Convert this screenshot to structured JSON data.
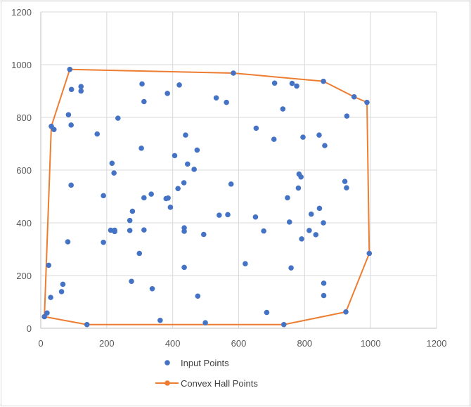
{
  "chart_data": {
    "type": "scatter",
    "title": "",
    "xlabel": "",
    "ylabel": "",
    "xlim": [
      0,
      1200
    ],
    "ylim": [
      0,
      1200
    ],
    "x_ticks": [
      "0",
      "200",
      "400",
      "600",
      "800",
      "1000",
      "1200"
    ],
    "y_ticks": [
      "0",
      "200",
      "400",
      "600",
      "800",
      "1000",
      "1200"
    ],
    "grid": true,
    "legend_position": "bottom",
    "series": [
      {
        "name": "Input Points",
        "kind": "markers",
        "color": "#4472C4",
        "points": [
          [
            88,
            982
          ],
          [
            93,
            906
          ],
          [
            122,
            917
          ],
          [
            122,
            900
          ],
          [
            32,
            766
          ],
          [
            40,
            754
          ],
          [
            92,
            771
          ],
          [
            84,
            810
          ],
          [
            171,
            737
          ],
          [
            234,
            797
          ],
          [
            307,
            927
          ],
          [
            313,
            860
          ],
          [
            384,
            891
          ],
          [
            420,
            923
          ],
          [
            532,
            874
          ],
          [
            563,
            857
          ],
          [
            584,
            968
          ],
          [
            709,
            930
          ],
          [
            762,
            929
          ],
          [
            776,
            919
          ],
          [
            857,
            937
          ],
          [
            950,
            878
          ],
          [
            989,
            857
          ],
          [
            734,
            832
          ],
          [
            928,
            805
          ],
          [
            653,
            759
          ],
          [
            707,
            717
          ],
          [
            844,
            733
          ],
          [
            795,
            725
          ],
          [
            861,
            693
          ],
          [
            305,
            683
          ],
          [
            406,
            655
          ],
          [
            474,
            676
          ],
          [
            439,
            733
          ],
          [
            216,
            626
          ],
          [
            222,
            589
          ],
          [
            92,
            543
          ],
          [
            445,
            623
          ],
          [
            465,
            603
          ],
          [
            434,
            552
          ],
          [
            416,
            530
          ],
          [
            577,
            547
          ],
          [
            783,
            585
          ],
          [
            789,
            574
          ],
          [
            781,
            532
          ],
          [
            922,
            557
          ],
          [
            927,
            533
          ],
          [
            190,
            503
          ],
          [
            335,
            509
          ],
          [
            313,
            495
          ],
          [
            380,
            492
          ],
          [
            386,
            494
          ],
          [
            393,
            459
          ],
          [
            278,
            444
          ],
          [
            748,
            495
          ],
          [
            820,
            433
          ],
          [
            845,
            455
          ],
          [
            541,
            429
          ],
          [
            567,
            431
          ],
          [
            651,
            422
          ],
          [
            754,
            403
          ],
          [
            857,
            400
          ],
          [
            212,
            372
          ],
          [
            224,
            372
          ],
          [
            224,
            367
          ],
          [
            270,
            371
          ],
          [
            313,
            373
          ],
          [
            435,
            381
          ],
          [
            435,
            368
          ],
          [
            494,
            356
          ],
          [
            676,
            369
          ],
          [
            814,
            371
          ],
          [
            834,
            355
          ],
          [
            791,
            339
          ],
          [
            270,
            409
          ],
          [
            190,
            326
          ],
          [
            82,
            328
          ],
          [
            299,
            284
          ],
          [
            620,
            245
          ],
          [
            24,
            239
          ],
          [
            435,
            231
          ],
          [
            759,
            229
          ],
          [
            275,
            178
          ],
          [
            67,
            167
          ],
          [
            63,
            139
          ],
          [
            30,
            117
          ],
          [
            338,
            150
          ],
          [
            476,
            122
          ],
          [
            858,
            171
          ],
          [
            858,
            124
          ],
          [
            685,
            60
          ],
          [
            925,
            62
          ],
          [
            19,
            58
          ],
          [
            11,
            44
          ],
          [
            140,
            14
          ],
          [
            362,
            30
          ],
          [
            499,
            21
          ],
          [
            737,
            14
          ],
          [
            996,
            284
          ]
        ]
      },
      {
        "name": "Convex Hall Points",
        "kind": "line-markers",
        "color": "#ED7D31",
        "points": [
          [
            11,
            44
          ],
          [
            32,
            766
          ],
          [
            88,
            982
          ],
          [
            584,
            968
          ],
          [
            857,
            937
          ],
          [
            950,
            878
          ],
          [
            989,
            857
          ],
          [
            996,
            284
          ],
          [
            925,
            62
          ],
          [
            737,
            14
          ],
          [
            140,
            14
          ],
          [
            11,
            44
          ]
        ]
      }
    ]
  }
}
